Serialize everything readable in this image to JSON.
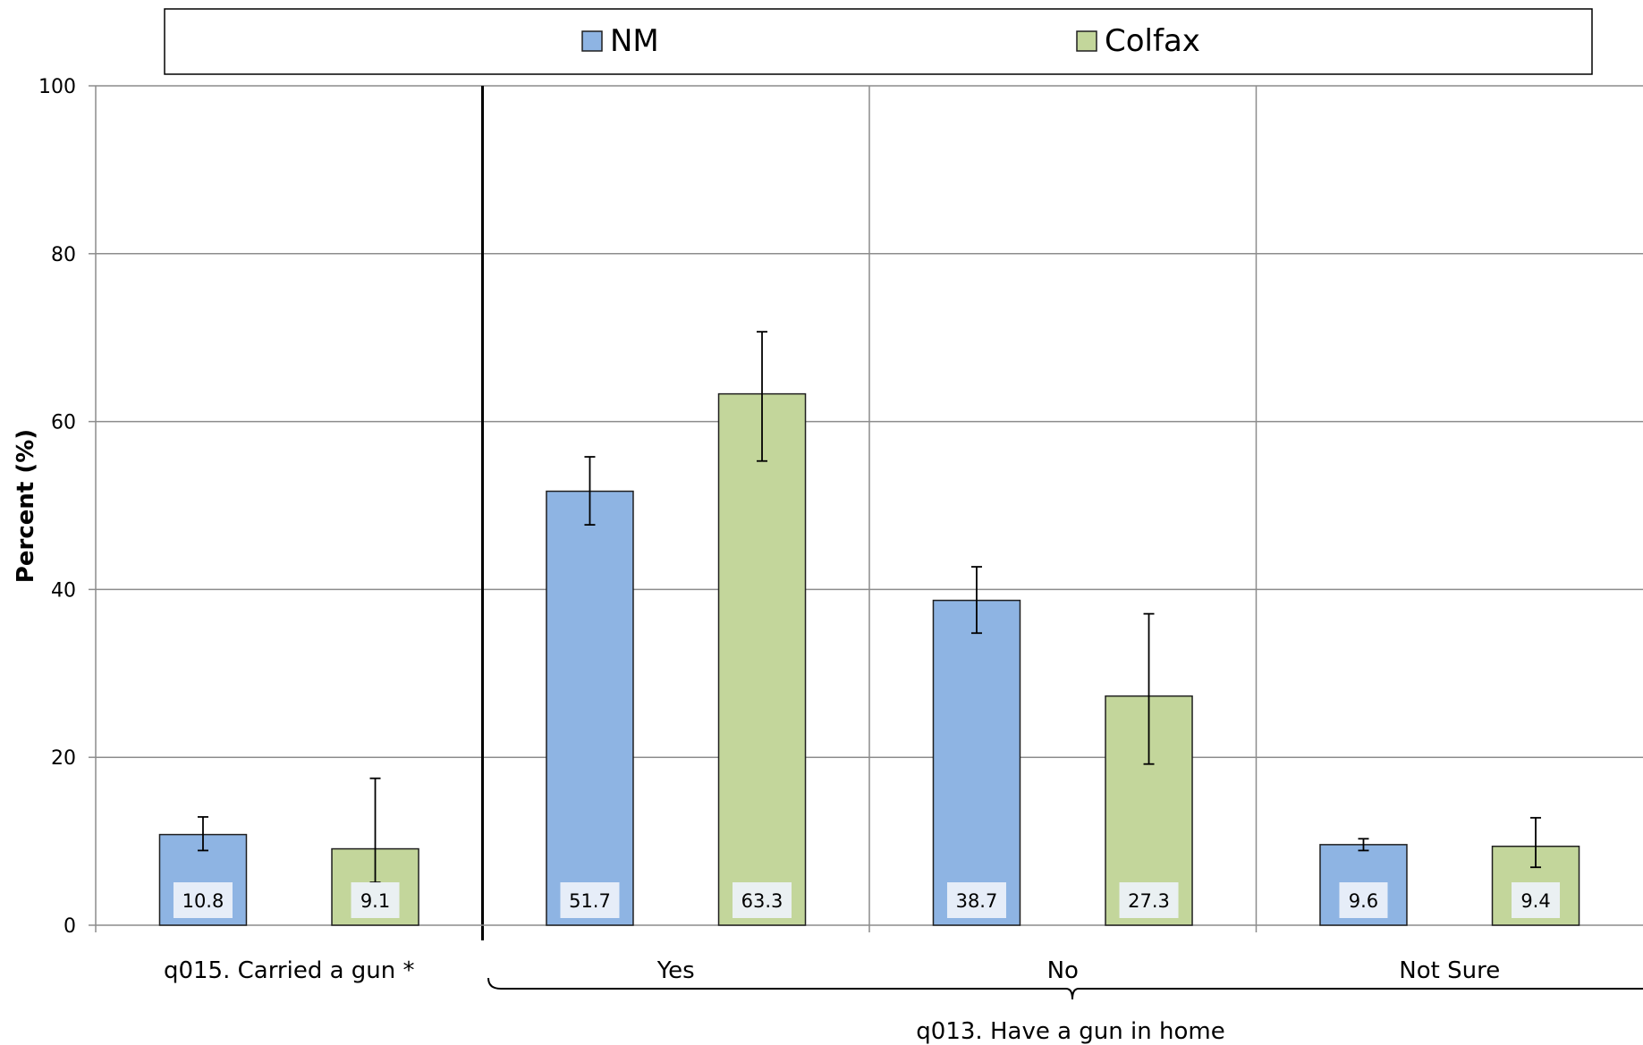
{
  "chart_data": {
    "type": "bar",
    "title": "",
    "ylabel": "Percent (%)",
    "ylim": [
      0,
      100
    ],
    "yticks": [
      0,
      20,
      40,
      60,
      80,
      100
    ],
    "grid": true,
    "legend_position": "top",
    "categories": [
      "q015. Carried a gun *",
      "Yes",
      "No",
      "Not Sure"
    ],
    "group_label": "q013. Have a gun in home",
    "series": [
      {
        "name": "NM",
        "color": "#8eb4e3",
        "values": [
          10.8,
          51.7,
          38.7,
          9.6
        ],
        "error_low": [
          8.9,
          47.7,
          34.8,
          8.9
        ],
        "error_high": [
          12.9,
          55.8,
          42.7,
          10.3
        ],
        "value_labels": [
          "10.8",
          "51.7",
          "38.7",
          "9.6"
        ]
      },
      {
        "name": "Colfax",
        "color": "#c3d69b",
        "values": [
          9.1,
          63.3,
          27.3,
          9.4
        ],
        "error_low": [
          5.1,
          55.3,
          19.2,
          6.9
        ],
        "error_high": [
          17.5,
          70.7,
          37.1,
          12.8
        ],
        "value_labels": [
          "9.1",
          "63.3",
          "27.3",
          "9.4"
        ]
      }
    ]
  }
}
